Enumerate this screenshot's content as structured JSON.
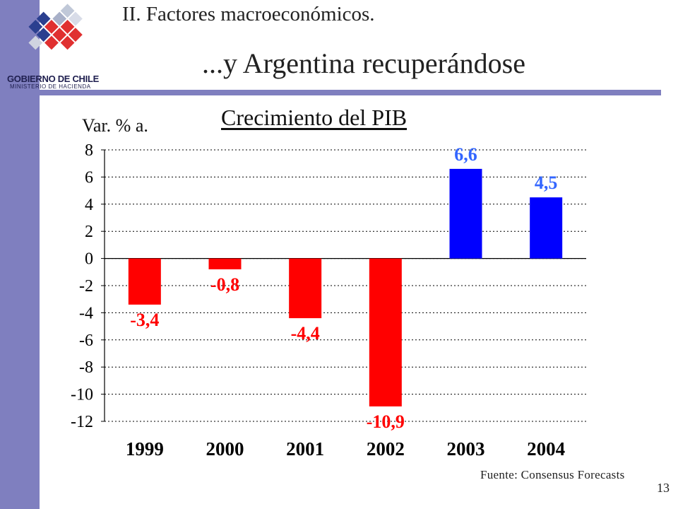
{
  "header": {
    "section_title": "II. Factores macroeconómicos.",
    "main_title": "...y Argentina recuperándose"
  },
  "logo": {
    "name": "GOBIERNO DE CHILE",
    "subtitle": "MINISTERIO DE HACIENDA"
  },
  "chart_data": {
    "type": "bar",
    "title": "Crecimiento del PIB",
    "ylabel": "Var. % a.",
    "xlabel": "",
    "categories": [
      "1999",
      "2000",
      "2001",
      "2002",
      "2003",
      "2004"
    ],
    "values": [
      -3.4,
      -0.8,
      -4.4,
      -10.9,
      6.6,
      4.5
    ],
    "data_labels": [
      "-3,4",
      "-0,8",
      "-4,4",
      "-10,9",
      "6,6",
      "4,5"
    ],
    "bar_colors": [
      "#ff0000",
      "#ff0000",
      "#ff0000",
      "#ff0000",
      "#0000ff",
      "#0000ff"
    ],
    "label_colors": [
      "#ff0000",
      "#ff0000",
      "#ff0000",
      "#ff0000",
      "#3366ff",
      "#3366ff"
    ],
    "ylim": [
      -12,
      8
    ],
    "yticks": [
      8,
      6,
      4,
      2,
      0,
      -2,
      -4,
      -6,
      -8,
      -10,
      -12
    ],
    "grid": true,
    "legend": "none"
  },
  "footer": {
    "source": "Fuente: Consensus Forecasts",
    "page_number": "13"
  },
  "colors": {
    "accent": "#7f7fbf",
    "negative": "#ff0000",
    "positive": "#0000ff"
  }
}
